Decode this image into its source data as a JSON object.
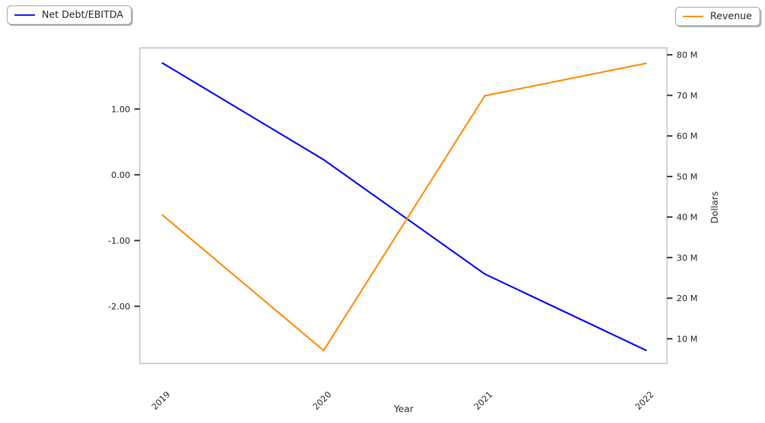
{
  "page": {
    "background_color": "#ffffff",
    "spine_color": "#c8c8c8",
    "tick_color": "#262626",
    "text_color": "#262626"
  },
  "chart_data": {
    "type": "line",
    "x": [
      2019,
      2020,
      2021,
      2022
    ],
    "x_tick_labels": [
      "2019",
      "2020",
      "2021",
      "2022"
    ],
    "x_range": [
      2018.86,
      2022.13
    ],
    "xlabel": "Year",
    "series": [
      {
        "name": "Net Debt/EBITDA",
        "axis": "left",
        "color": "#0000ff",
        "values": [
          1.7,
          0.23,
          -1.51,
          -2.67
        ]
      },
      {
        "name": "Revenue",
        "axis": "right",
        "color": "#ff8c00",
        "values": [
          40500000,
          7100000,
          69900000,
          77900000
        ]
      }
    ],
    "left_axis": {
      "label": "",
      "ticks": [
        1.0,
        0.0,
        -1.0,
        -2.0
      ],
      "tick_labels": [
        "1.00",
        "0.00",
        "-1.00",
        "-2.00"
      ],
      "range": [
        -2.87,
        1.93
      ]
    },
    "right_axis": {
      "label": "Dollars",
      "ticks": [
        80000000,
        70000000,
        60000000,
        50000000,
        40000000,
        30000000,
        20000000,
        10000000
      ],
      "tick_labels": [
        "80 M",
        "70 M",
        "60 M",
        "50 M",
        "40 M",
        "30 M",
        "20 M",
        "10 M"
      ],
      "range": [
        3900000,
        81700000
      ]
    },
    "grid": false,
    "legend_position": "outside-top-corners"
  }
}
